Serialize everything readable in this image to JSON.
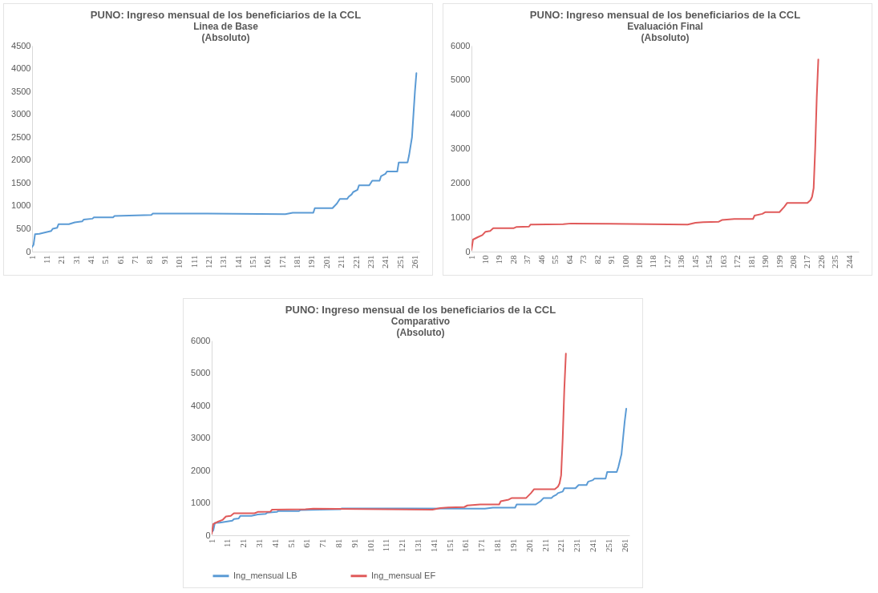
{
  "chart_data": [
    {
      "type": "line",
      "title": "PUNO: Ingreso mensual de los beneficiarios de la CCL",
      "subtitle": "Linea de Base\n(Absoluto)",
      "xlim": [
        1,
        264
      ],
      "xticks": [
        1,
        11,
        21,
        31,
        41,
        51,
        61,
        71,
        81,
        91,
        101,
        111,
        121,
        131,
        141,
        151,
        161,
        171,
        181,
        191,
        201,
        211,
        221,
        231,
        241,
        251,
        261
      ],
      "ylim": [
        0,
        4500
      ],
      "yticks": [
        0,
        500,
        1000,
        1500,
        2000,
        2500,
        3000,
        3500,
        4000,
        4500
      ],
      "grid": false,
      "series": [
        {
          "color": "#5b9bd5",
          "x": [
            1,
            2,
            3,
            6,
            10,
            14,
            15,
            18,
            19,
            26,
            30,
            35,
            36,
            42,
            43,
            56,
            57,
            82,
            83,
            120,
            173,
            178,
            192,
            193,
            205,
            208,
            210,
            215,
            216,
            218,
            219,
            222,
            223,
            230,
            232,
            237,
            238,
            241,
            242,
            249,
            250,
            256,
            257,
            258,
            259,
            260,
            261,
            262
          ],
          "values": [
            100,
            150,
            380,
            390,
            420,
            450,
            500,
            520,
            600,
            600,
            640,
            660,
            700,
            720,
            750,
            750,
            780,
            800,
            830,
            830,
            820,
            850,
            850,
            950,
            950,
            1050,
            1150,
            1150,
            1200,
            1250,
            1300,
            1350,
            1450,
            1450,
            1550,
            1550,
            1650,
            1700,
            1750,
            1750,
            1950,
            1950,
            2100,
            2300,
            2500,
            3000,
            3500,
            3900
          ]
        }
      ]
    },
    {
      "type": "line",
      "title": "PUNO: Ingreso mensual de los beneficiarios de la CCL",
      "subtitle": "Evaluación Final\n(Absoluto)",
      "xlim": [
        1,
        250
      ],
      "xticks": [
        1,
        10,
        19,
        28,
        37,
        46,
        55,
        64,
        73,
        82,
        91,
        100,
        109,
        118,
        127,
        136,
        145,
        154,
        163,
        172,
        181,
        190,
        199,
        208,
        217,
        226,
        235,
        244
      ],
      "ylim": [
        0,
        6000
      ],
      "yticks": [
        0,
        1000,
        2000,
        3000,
        4000,
        5000,
        6000
      ],
      "grid": false,
      "series": [
        {
          "color": "#e05a5a",
          "x": [
            1,
            2,
            5,
            8,
            10,
            13,
            15,
            28,
            30,
            38,
            39,
            60,
            65,
            140,
            145,
            150,
            160,
            162,
            170,
            182,
            183,
            188,
            190,
            199,
            202,
            204,
            217,
            219,
            220,
            221,
            222,
            223,
            224
          ],
          "values": [
            50,
            350,
            420,
            480,
            580,
            600,
            680,
            680,
            720,
            730,
            790,
            800,
            820,
            790,
            840,
            860,
            870,
            920,
            950,
            950,
            1050,
            1100,
            1150,
            1150,
            1300,
            1420,
            1420,
            1500,
            1600,
            1850,
            3000,
            4500,
            5600
          ]
        }
      ]
    },
    {
      "type": "line",
      "title": "PUNO: Ingreso mensual de los beneficiarios de la CCL",
      "subtitle": "Comparativo\n(Absoluto)",
      "xlim": [
        1,
        264
      ],
      "xticks": [
        1,
        11,
        21,
        31,
        41,
        51,
        61,
        71,
        81,
        91,
        101,
        111,
        121,
        131,
        141,
        151,
        161,
        171,
        181,
        191,
        201,
        211,
        221,
        231,
        241,
        251,
        261
      ],
      "ylim": [
        0,
        6000
      ],
      "yticks": [
        0,
        1000,
        2000,
        3000,
        4000,
        5000,
        6000
      ],
      "grid": false,
      "legend": "bottom",
      "series": [
        {
          "name": "Ing_mensual LB",
          "color": "#5b9bd5",
          "x": [
            1,
            2,
            3,
            6,
            10,
            14,
            15,
            18,
            19,
            26,
            30,
            35,
            36,
            42,
            43,
            56,
            57,
            82,
            83,
            120,
            173,
            178,
            192,
            193,
            205,
            208,
            210,
            215,
            216,
            218,
            219,
            222,
            223,
            230,
            232,
            237,
            238,
            241,
            242,
            249,
            250,
            256,
            257,
            258,
            259,
            260,
            261,
            262
          ],
          "values": [
            100,
            150,
            380,
            390,
            420,
            450,
            500,
            520,
            600,
            600,
            640,
            660,
            700,
            720,
            750,
            750,
            780,
            800,
            830,
            830,
            820,
            850,
            850,
            950,
            950,
            1050,
            1150,
            1150,
            1200,
            1250,
            1300,
            1350,
            1450,
            1450,
            1550,
            1550,
            1650,
            1700,
            1750,
            1750,
            1950,
            1950,
            2100,
            2300,
            2500,
            3000,
            3500,
            3900
          ]
        },
        {
          "name": "Ing_mensual EF",
          "color": "#e05a5a",
          "x": [
            1,
            2,
            5,
            8,
            10,
            13,
            15,
            28,
            30,
            38,
            39,
            60,
            65,
            140,
            145,
            150,
            160,
            162,
            170,
            182,
            183,
            188,
            190,
            199,
            202,
            204,
            217,
            219,
            220,
            221,
            222,
            223,
            224
          ],
          "values": [
            50,
            350,
            420,
            480,
            580,
            600,
            680,
            680,
            720,
            730,
            790,
            800,
            820,
            790,
            840,
            860,
            870,
            920,
            950,
            950,
            1050,
            1100,
            1150,
            1150,
            1300,
            1420,
            1420,
            1500,
            1600,
            1850,
            3000,
            4500,
            5600
          ]
        }
      ]
    }
  ]
}
